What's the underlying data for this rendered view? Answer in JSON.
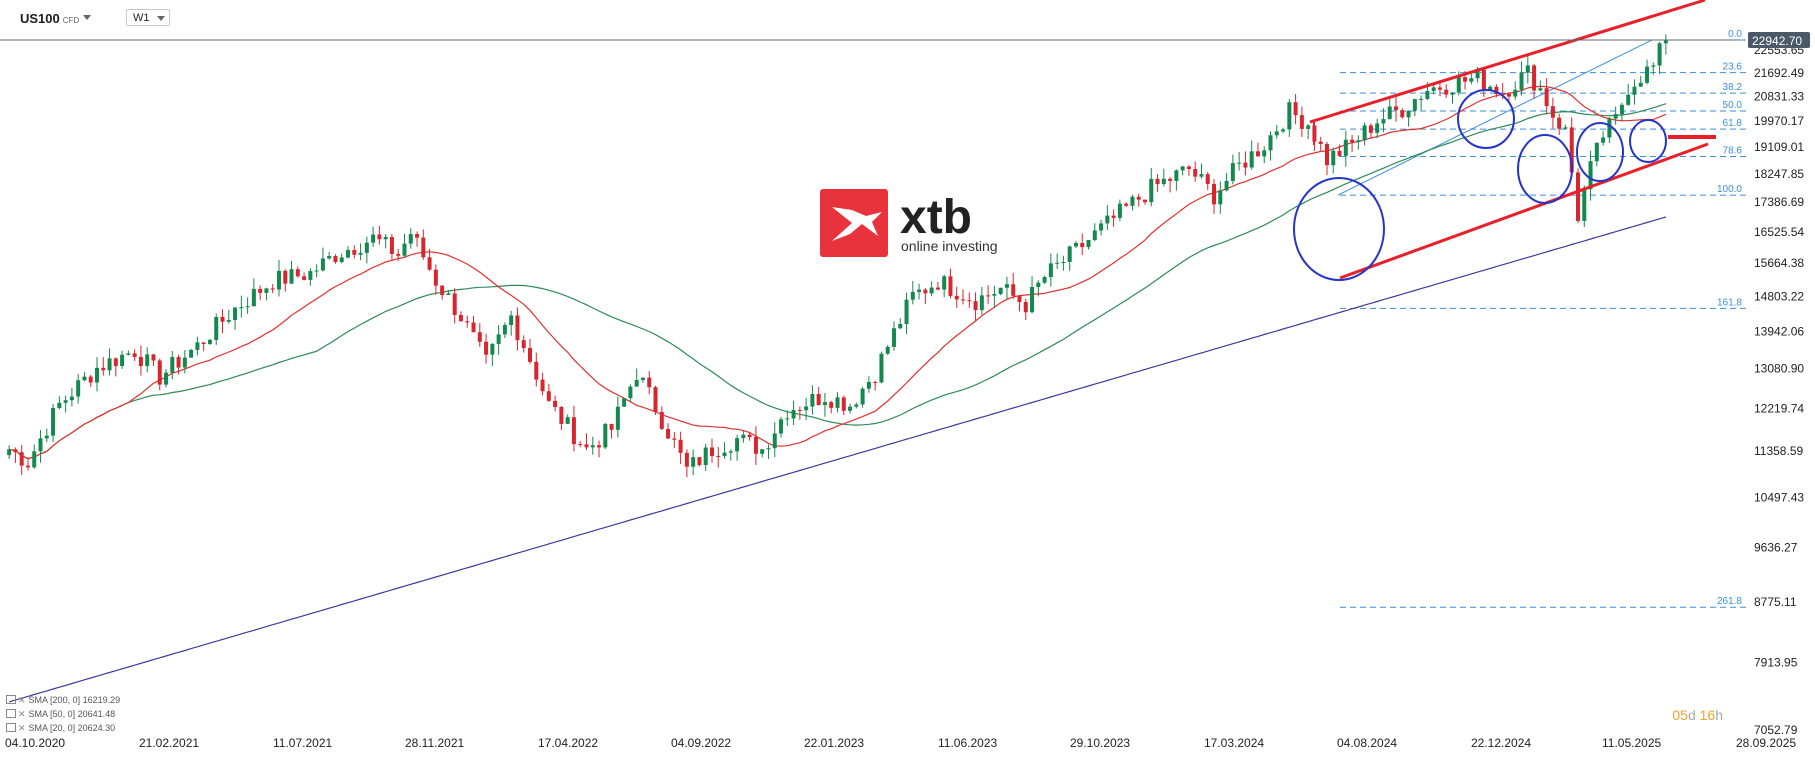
{
  "toolbar": {
    "symbol": "US100",
    "symbol_suffix": "CFD",
    "timeframe": "W1"
  },
  "logo": {
    "brand": "xtb",
    "tagline": "online investing"
  },
  "legend": [
    {
      "label": "SMA [200, 0] 16219.29",
      "color": "#3b3b9e"
    },
    {
      "label": "SMA [50, 0] 20641.48",
      "color": "#2e8b57"
    },
    {
      "label": "SMA [20, 0] 20624.30",
      "color": "#e03030"
    }
  ],
  "countdown": {
    "days": "05",
    "days_unit": "d",
    "hours": "16",
    "hours_unit": "h"
  },
  "chart_data": {
    "type": "candlestick",
    "y_scale": "log",
    "ylim": [
      6800,
      26500
    ],
    "y_ticks": [
      22553.65,
      21692.49,
      20831.33,
      19970.17,
      19109.01,
      18247.85,
      17386.69,
      16525.54,
      15664.38,
      14803.22,
      13942.06,
      13080.9,
      12219.74,
      11358.59,
      10497.43,
      9636.27,
      8775.11,
      7913.95,
      7052.79
    ],
    "y_tick_labels": [
      "22553.65",
      "21692.49",
      "20831.33",
      "19970.17",
      "19109.01",
      "18247.85",
      "17386.69",
      "16525.54",
      "15664.38",
      "14803.22",
      "13942.06",
      "13080.90",
      "12219.74",
      "11358.59",
      "10497.43",
      "9636.27",
      "8775.11",
      "7913.95",
      "7052.79"
    ],
    "x_labels": [
      "04.10.2020",
      "21.02.2021",
      "11.07.2021",
      "28.11.2021",
      "17.04.2022",
      "04.09.2022",
      "22.01.2023",
      "11.06.2023",
      "29.10.2023",
      "17.03.2024",
      "04.08.2024",
      "22.12.2024",
      "11.05.2025",
      "28.09.2025"
    ],
    "current_price": 22942.7,
    "current_price_label": "22942.70",
    "anchors": [
      {
        "t": 0,
        "c": 11400
      },
      {
        "t": 3,
        "c": 11150
      },
      {
        "t": 8,
        "c": 12300
      },
      {
        "t": 14,
        "c": 13100
      },
      {
        "t": 20,
        "c": 13500
      },
      {
        "t": 24,
        "c": 12900
      },
      {
        "t": 30,
        "c": 13600
      },
      {
        "t": 36,
        "c": 14500
      },
      {
        "t": 42,
        "c": 15200
      },
      {
        "t": 48,
        "c": 15400
      },
      {
        "t": 52,
        "c": 15900
      },
      {
        "t": 58,
        "c": 16350
      },
      {
        "t": 62,
        "c": 15900
      },
      {
        "t": 64,
        "c": 16500
      },
      {
        "t": 68,
        "c": 15200
      },
      {
        "t": 72,
        "c": 14300
      },
      {
        "t": 76,
        "c": 13200
      },
      {
        "t": 80,
        "c": 14300
      },
      {
        "t": 86,
        "c": 12300
      },
      {
        "t": 92,
        "c": 11400
      },
      {
        "t": 96,
        "c": 11800
      },
      {
        "t": 100,
        "c": 13000
      },
      {
        "t": 104,
        "c": 12000
      },
      {
        "t": 108,
        "c": 11000
      },
      {
        "t": 112,
        "c": 11400
      },
      {
        "t": 116,
        "c": 11600
      },
      {
        "t": 120,
        "c": 11400
      },
      {
        "t": 124,
        "c": 12200
      },
      {
        "t": 130,
        "c": 12500
      },
      {
        "t": 134,
        "c": 12300
      },
      {
        "t": 138,
        "c": 13000
      },
      {
        "t": 144,
        "c": 14800
      },
      {
        "t": 148,
        "c": 15200
      },
      {
        "t": 154,
        "c": 14700
      },
      {
        "t": 158,
        "c": 15000
      },
      {
        "t": 162,
        "c": 14600
      },
      {
        "t": 165,
        "c": 15300
      },
      {
        "t": 170,
        "c": 16000
      },
      {
        "t": 176,
        "c": 16900
      },
      {
        "t": 182,
        "c": 17800
      },
      {
        "t": 188,
        "c": 18400
      },
      {
        "t": 192,
        "c": 17600
      },
      {
        "t": 196,
        "c": 18500
      },
      {
        "t": 200,
        "c": 19200
      },
      {
        "t": 204,
        "c": 20300
      },
      {
        "t": 207,
        "c": 19900
      },
      {
        "t": 210,
        "c": 18700
      },
      {
        "t": 214,
        "c": 19200
      },
      {
        "t": 218,
        "c": 20000
      },
      {
        "t": 222,
        "c": 20400
      },
      {
        "t": 226,
        "c": 21100
      },
      {
        "t": 230,
        "c": 21300
      },
      {
        "t": 234,
        "c": 21500
      },
      {
        "t": 238,
        "c": 21000
      },
      {
        "t": 242,
        "c": 21700
      },
      {
        "t": 244,
        "c": 21100
      },
      {
        "t": 246,
        "c": 20200
      },
      {
        "t": 248,
        "c": 19600
      },
      {
        "t": 250,
        "c": 17000
      },
      {
        "t": 252,
        "c": 18400
      },
      {
        "t": 254,
        "c": 19500
      },
      {
        "t": 256,
        "c": 20000
      },
      {
        "t": 258,
        "c": 21200
      },
      {
        "t": 260,
        "c": 21600
      },
      {
        "t": 262,
        "c": 21900
      },
      {
        "t": 264,
        "c": 23000
      }
    ],
    "fibonacci": [
      {
        "level": "0.0",
        "price": 22942.7
      },
      {
        "level": "23.6",
        "price": 21700
      },
      {
        "level": "38.2",
        "price": 20950
      },
      {
        "level": "50.0",
        "price": 20320
      },
      {
        "level": "61.8",
        "price": 19700
      },
      {
        "level": "78.6",
        "price": 18800
      },
      {
        "level": "100.0",
        "price": 17600
      },
      {
        "level": "161.8",
        "price": 14500
      },
      {
        "level": "261.8",
        "price": 8700
      }
    ]
  }
}
